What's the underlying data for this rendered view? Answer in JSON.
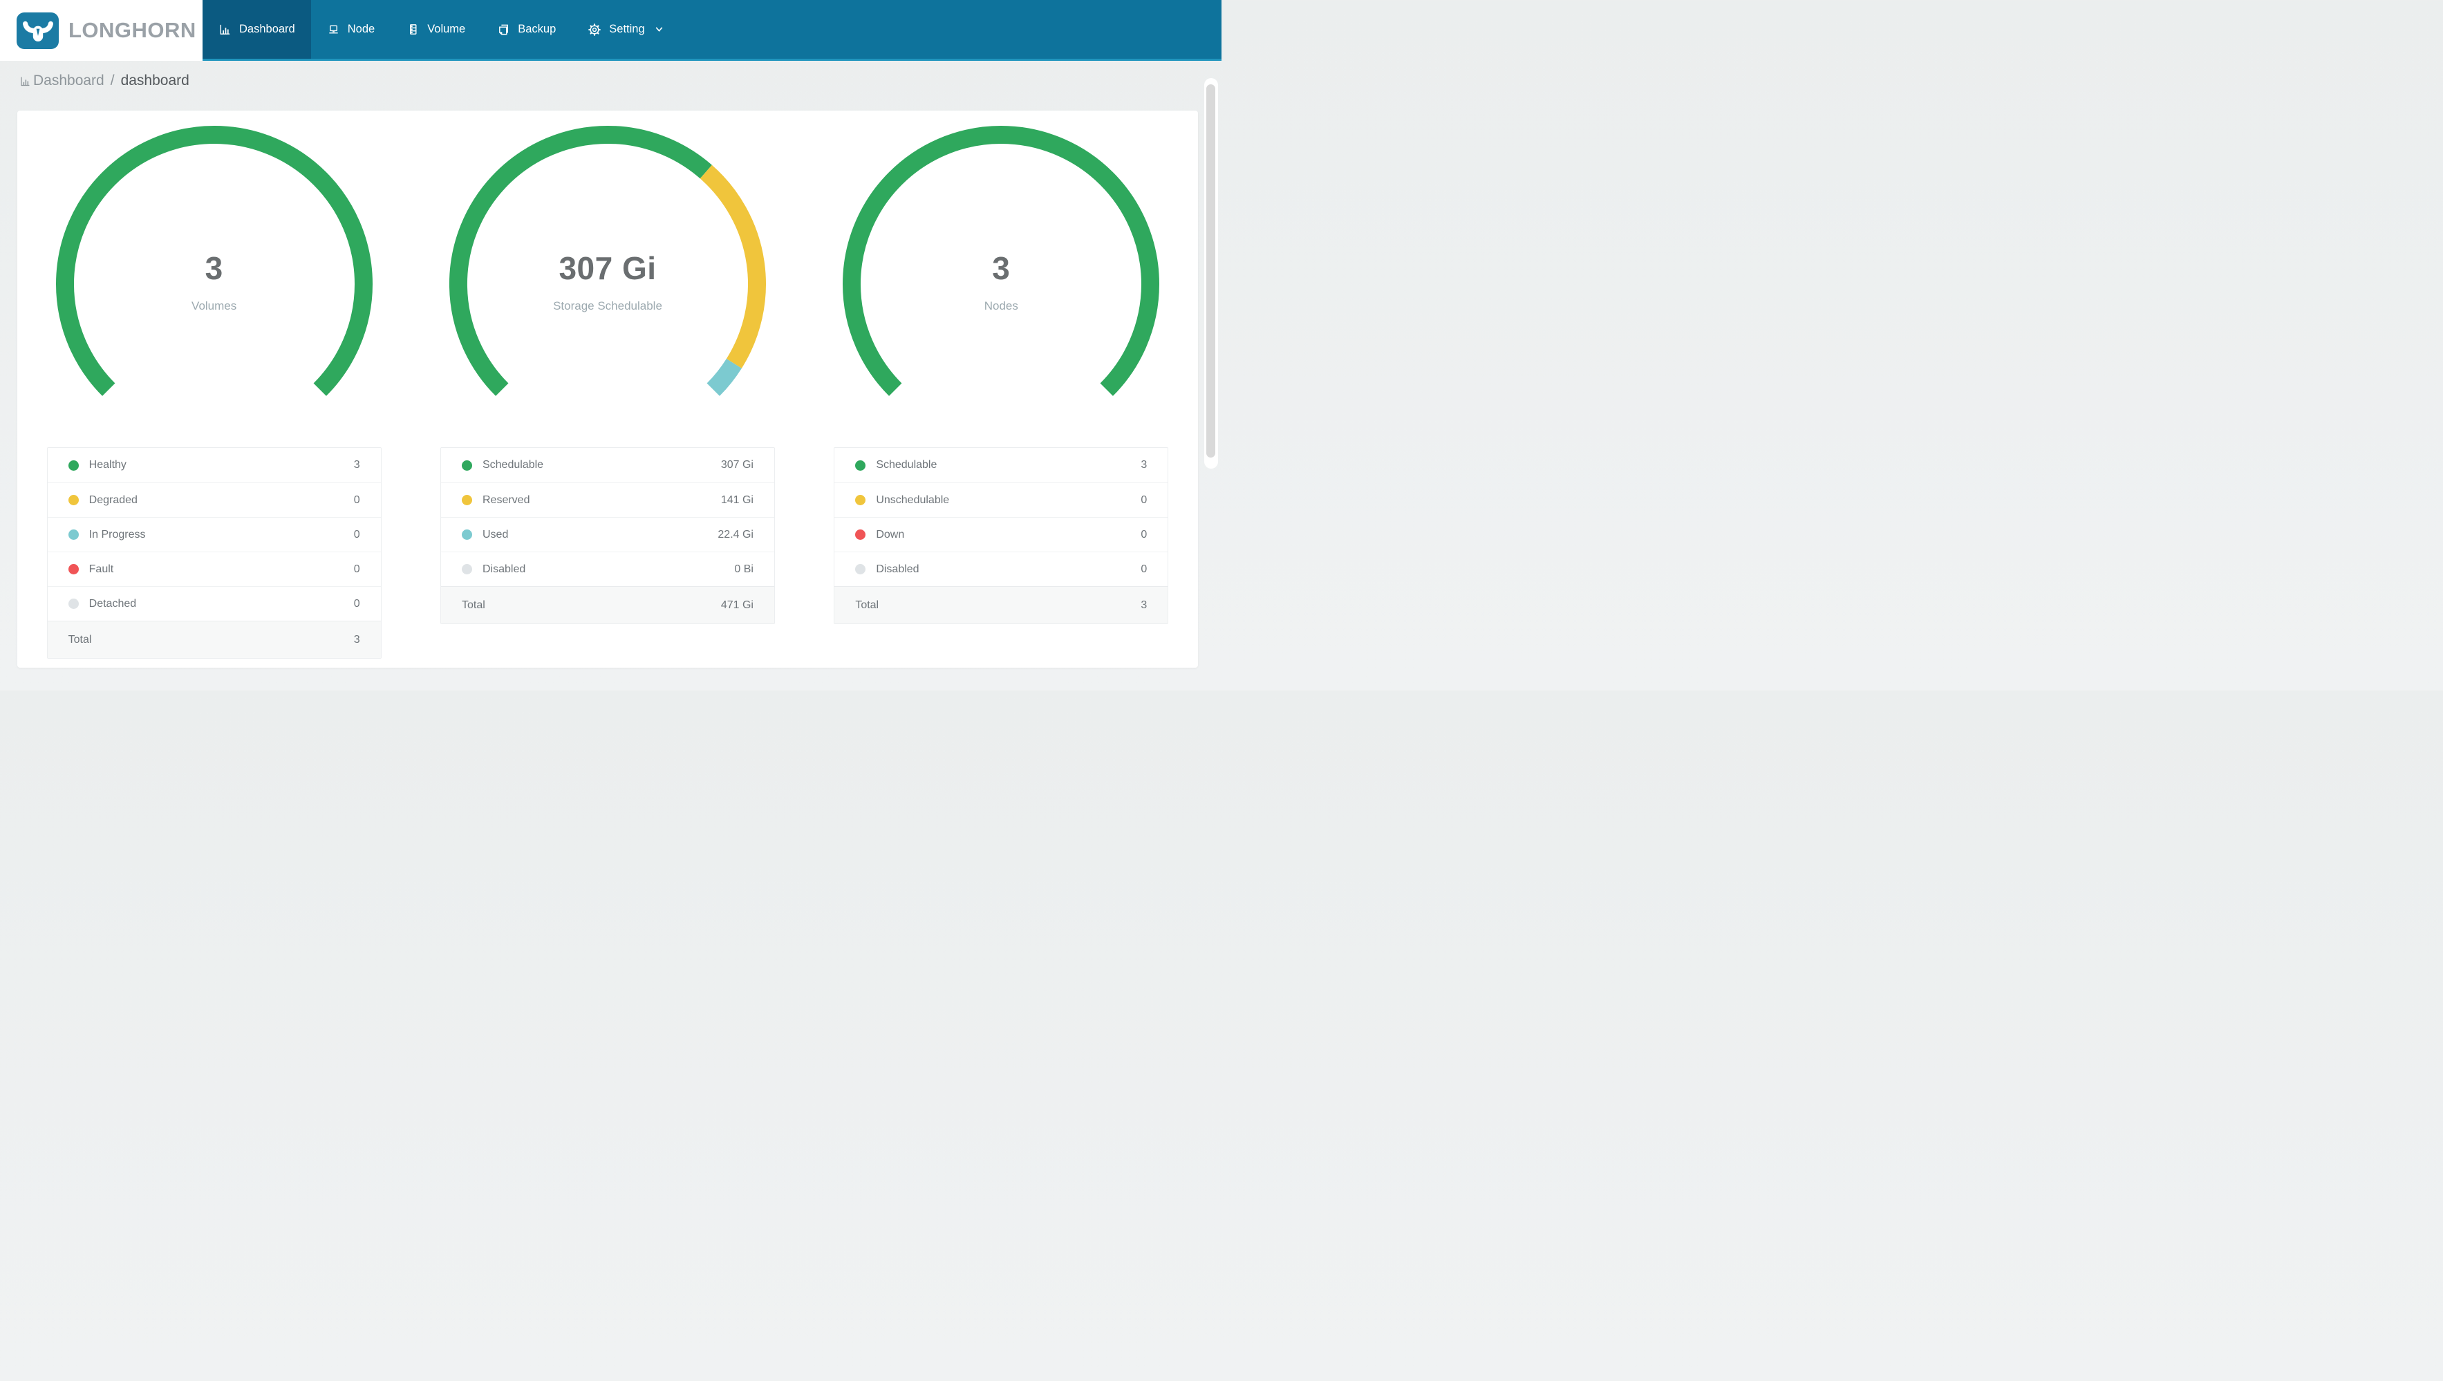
{
  "brand": {
    "name": "LONGHORN"
  },
  "nav": {
    "items": [
      {
        "label": "Dashboard",
        "icon": "dashboard-icon",
        "active": true
      },
      {
        "label": "Node",
        "icon": "node-icon",
        "active": false
      },
      {
        "label": "Volume",
        "icon": "volume-icon",
        "active": false
      },
      {
        "label": "Backup",
        "icon": "backup-icon",
        "active": false
      },
      {
        "label": "Setting",
        "icon": "setting-icon",
        "active": false,
        "caret": true
      }
    ]
  },
  "breadcrumb": {
    "section": "Dashboard",
    "separator": "/",
    "page": "dashboard"
  },
  "colors": {
    "nav_bar": "#0e739c",
    "nav_active": "#0b5a81",
    "nav_bottom_strip": "#1f95bd",
    "logo_tile": "#1b7ba4",
    "brand_text": "#9aa1a7",
    "green": "#2fa85d",
    "yellow": "#f0c53c",
    "teal": "#7ccad0",
    "red": "#f05456",
    "gray": "#dfe3e6"
  },
  "chart_data": [
    {
      "type": "gauge",
      "center_value": "3",
      "center_label": "Volumes",
      "start_angle_deg": 225,
      "sweep_deg": 270,
      "segments": [
        {
          "name": "Healthy",
          "color": "green",
          "value": 3
        },
        {
          "name": "Degraded",
          "color": "yellow",
          "value": 0
        },
        {
          "name": "In Progress",
          "color": "teal",
          "value": 0
        },
        {
          "name": "Fault",
          "color": "red",
          "value": 0
        },
        {
          "name": "Detached",
          "color": "gray",
          "value": 0
        }
      ],
      "total": 3
    },
    {
      "type": "gauge",
      "center_value": "307 Gi",
      "center_label": "Storage Schedulable",
      "start_angle_deg": 225,
      "sweep_deg": 270,
      "segments": [
        {
          "name": "Schedulable",
          "color": "green",
          "value": 307
        },
        {
          "name": "Reserved",
          "color": "yellow",
          "value": 141
        },
        {
          "name": "Used",
          "color": "teal",
          "value": 22.4
        },
        {
          "name": "Disabled",
          "color": "gray",
          "value": 0
        }
      ],
      "total": 470.4
    },
    {
      "type": "gauge",
      "center_value": "3",
      "center_label": "Nodes",
      "start_angle_deg": 225,
      "sweep_deg": 270,
      "segments": [
        {
          "name": "Schedulable",
          "color": "green",
          "value": 3
        },
        {
          "name": "Unschedulable",
          "color": "yellow",
          "value": 0
        },
        {
          "name": "Down",
          "color": "red",
          "value": 0
        },
        {
          "name": "Disabled",
          "color": "gray",
          "value": 0
        }
      ],
      "total": 3
    }
  ],
  "legends": [
    {
      "rows": [
        {
          "color": "green",
          "label": "Healthy",
          "value": "3"
        },
        {
          "color": "yellow",
          "label": "Degraded",
          "value": "0"
        },
        {
          "color": "teal",
          "label": "In Progress",
          "value": "0"
        },
        {
          "color": "red",
          "label": "Fault",
          "value": "0"
        },
        {
          "color": "gray",
          "label": "Detached",
          "value": "0"
        }
      ],
      "total": {
        "label": "Total",
        "value": "3"
      }
    },
    {
      "rows": [
        {
          "color": "green",
          "label": "Schedulable",
          "value": "307 Gi"
        },
        {
          "color": "yellow",
          "label": "Reserved",
          "value": "141 Gi"
        },
        {
          "color": "teal",
          "label": "Used",
          "value": "22.4 Gi"
        },
        {
          "color": "gray",
          "label": "Disabled",
          "value": "0 Bi"
        }
      ],
      "total": {
        "label": "Total",
        "value": "471 Gi"
      }
    },
    {
      "rows": [
        {
          "color": "green",
          "label": "Schedulable",
          "value": "3"
        },
        {
          "color": "yellow",
          "label": "Unschedulable",
          "value": "0"
        },
        {
          "color": "red",
          "label": "Down",
          "value": "0"
        },
        {
          "color": "gray",
          "label": "Disabled",
          "value": "0"
        }
      ],
      "total": {
        "label": "Total",
        "value": "3"
      }
    }
  ]
}
